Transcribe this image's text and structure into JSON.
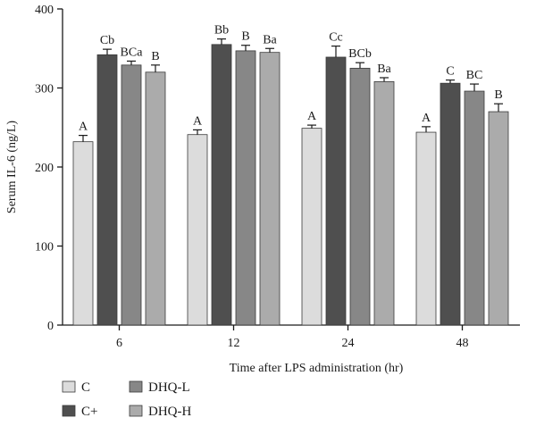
{
  "chart_data": {
    "type": "bar",
    "title": "",
    "xlabel": "Time after LPS administration (hr)",
    "ylabel": "Serum IL-6 (ng/L)",
    "ylim": [
      0,
      400
    ],
    "yticks": [
      0,
      100,
      200,
      300,
      400
    ],
    "categories": [
      "6",
      "12",
      "24",
      "48"
    ],
    "series": [
      {
        "name": "C",
        "color": "#dcdcdc",
        "values": [
          232,
          241,
          249,
          244
        ],
        "errors": [
          8,
          6,
          4,
          7
        ],
        "labels": [
          "A",
          "A",
          "A",
          "A"
        ]
      },
      {
        "name": "C+",
        "color": "#4f4f4f",
        "values": [
          342,
          355,
          339,
          306
        ],
        "errors": [
          7,
          7,
          14,
          4
        ],
        "labels": [
          "Cb",
          "Bb",
          "Cc",
          "C"
        ]
      },
      {
        "name": "DHQ-L",
        "color": "#878787",
        "values": [
          329,
          347,
          325,
          296
        ],
        "errors": [
          5,
          7,
          7,
          9
        ],
        "labels": [
          "BCa",
          "B",
          "BCb",
          "BC"
        ]
      },
      {
        "name": "DHQ-H",
        "color": "#ababab",
        "values": [
          320,
          345,
          308,
          270
        ],
        "errors": [
          9,
          5,
          5,
          10
        ],
        "labels": [
          "B",
          "Ba",
          "Ba",
          "B"
        ]
      }
    ],
    "legend": {
      "placement": "bottom-left",
      "columns": 2
    },
    "grid": false
  }
}
